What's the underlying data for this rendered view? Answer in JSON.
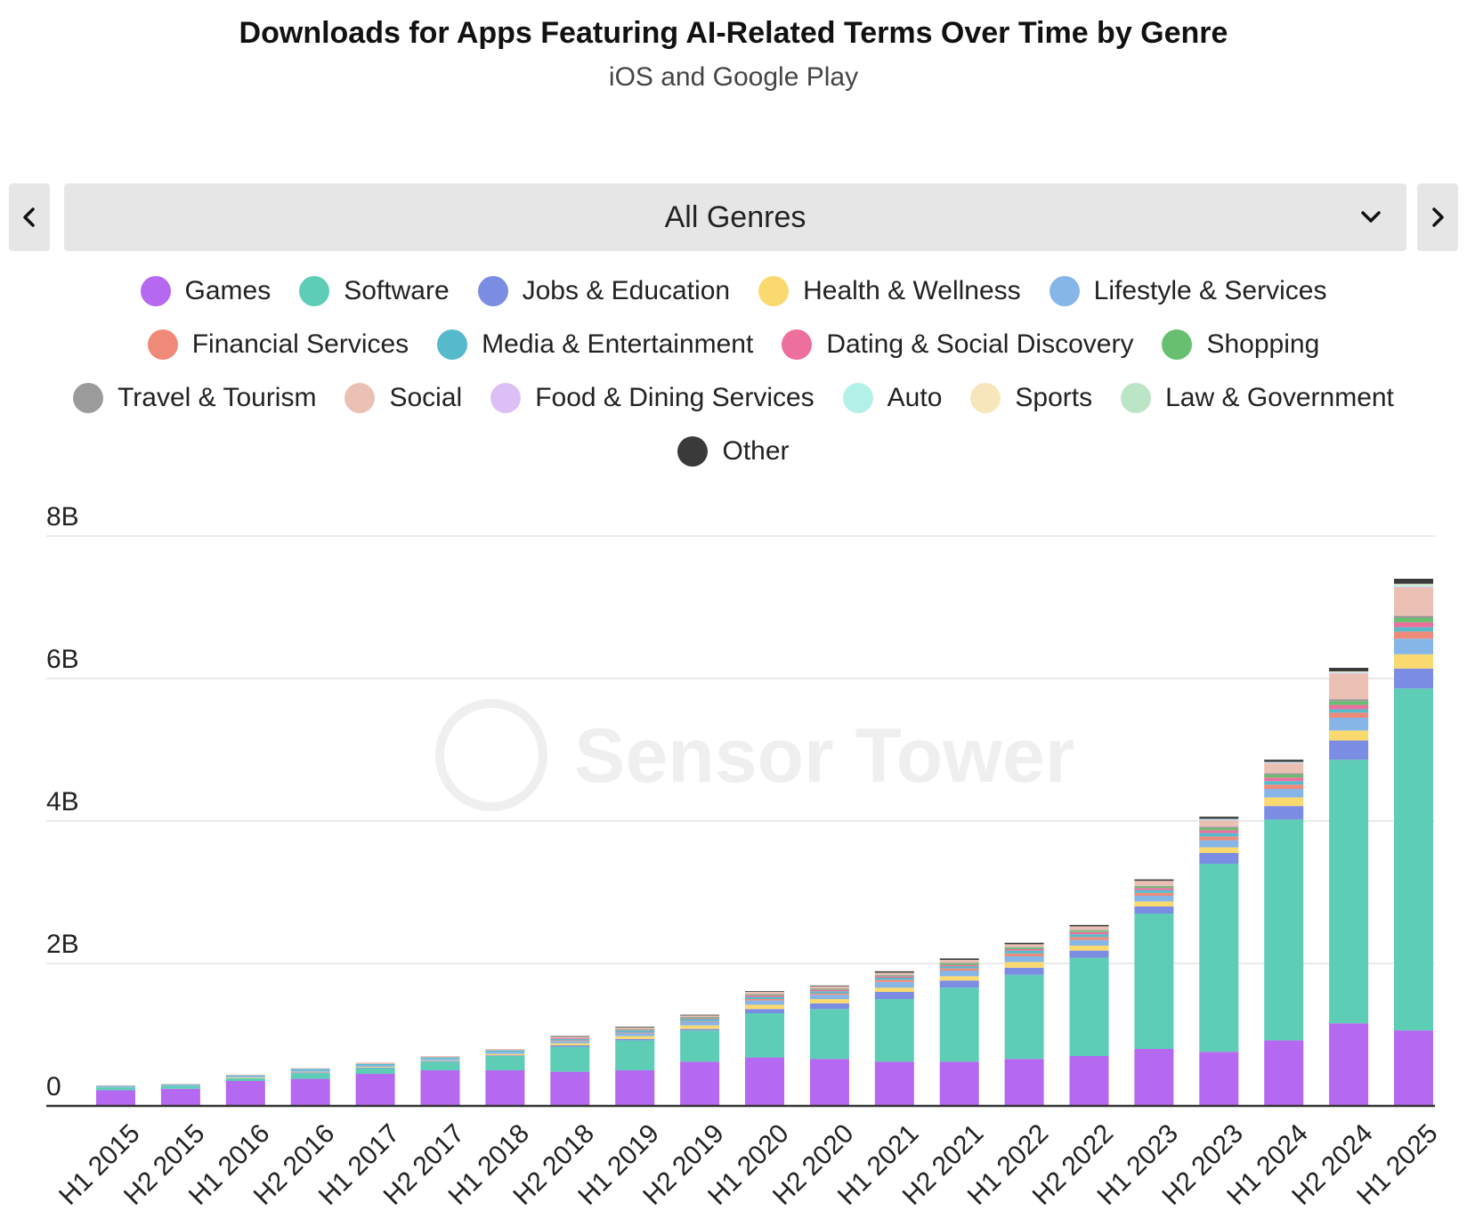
{
  "header": {
    "title": "Downloads for Apps Featuring AI-Related Terms Over Time by Genre",
    "subtitle": "iOS and Google Play"
  },
  "selector": {
    "value": "All Genres",
    "prev_icon": "chevron-left-icon",
    "next_icon": "chevron-right-icon",
    "dropdown_icon": "chevron-down-icon"
  },
  "watermark": "Sensor Tower",
  "legend_rows": [
    [
      0,
      1,
      2,
      3,
      4
    ],
    [
      5,
      6,
      7,
      8
    ],
    [
      9,
      10,
      11,
      12,
      13,
      14
    ],
    [
      15
    ]
  ],
  "chart_data": {
    "type": "bar",
    "stacked": true,
    "unit": "B",
    "ylim": [
      0,
      8
    ],
    "yticks": [
      0,
      2,
      4,
      6,
      8
    ],
    "ytick_labels": [
      "0",
      "2B",
      "4B",
      "6B",
      "8B"
    ],
    "grid": true,
    "legend_position": "top",
    "categories": [
      "H1 2015",
      "H2 2015",
      "H1 2016",
      "H2 2016",
      "H1 2017",
      "H2 2017",
      "H1 2018",
      "H2 2018",
      "H1 2019",
      "H2 2019",
      "H1 2020",
      "H2 2020",
      "H1 2021",
      "H2 2021",
      "H1 2022",
      "H2 2022",
      "H1 2023",
      "H2 2023",
      "H1 2024",
      "H2 2024",
      "H1 2025"
    ],
    "series": [
      {
        "name": "Games",
        "color": "#b469f0",
        "values": [
          0.22,
          0.24,
          0.35,
          0.38,
          0.45,
          0.5,
          0.5,
          0.48,
          0.5,
          0.62,
          0.68,
          0.66,
          0.62,
          0.62,
          0.66,
          0.7,
          0.8,
          0.76,
          0.92,
          1.16,
          1.06
        ]
      },
      {
        "name": "Software",
        "color": "#5ecdb6",
        "values": [
          0.04,
          0.04,
          0.04,
          0.08,
          0.08,
          0.12,
          0.2,
          0.35,
          0.42,
          0.44,
          0.62,
          0.7,
          0.88,
          1.04,
          1.18,
          1.38,
          1.9,
          2.64,
          3.1,
          3.7,
          4.8
        ]
      },
      {
        "name": "Jobs & Education",
        "color": "#7b8de3",
        "values": [
          0.0,
          0.0,
          0.0,
          0.01,
          0.01,
          0.01,
          0.01,
          0.02,
          0.02,
          0.02,
          0.06,
          0.08,
          0.1,
          0.1,
          0.1,
          0.1,
          0.1,
          0.15,
          0.19,
          0.27,
          0.28
        ]
      },
      {
        "name": "Health & Wellness",
        "color": "#fad96e",
        "values": [
          0.0,
          0.0,
          0.01,
          0.01,
          0.01,
          0.01,
          0.02,
          0.03,
          0.04,
          0.05,
          0.06,
          0.06,
          0.06,
          0.06,
          0.08,
          0.07,
          0.07,
          0.08,
          0.12,
          0.14,
          0.2
        ]
      },
      {
        "name": "Lifestyle & Services",
        "color": "#86b5e8",
        "values": [
          0.01,
          0.01,
          0.02,
          0.02,
          0.02,
          0.02,
          0.03,
          0.03,
          0.04,
          0.05,
          0.06,
          0.06,
          0.08,
          0.08,
          0.08,
          0.08,
          0.08,
          0.1,
          0.12,
          0.18,
          0.22
        ]
      },
      {
        "name": "Financial Services",
        "color": "#f08a78",
        "values": [
          0.0,
          0.0,
          0.0,
          0.0,
          0.0,
          0.0,
          0.0,
          0.01,
          0.01,
          0.01,
          0.02,
          0.02,
          0.03,
          0.03,
          0.04,
          0.04,
          0.04,
          0.05,
          0.06,
          0.07,
          0.1
        ]
      },
      {
        "name": "Media & Entertainment",
        "color": "#57b9cc",
        "values": [
          0.01,
          0.01,
          0.01,
          0.02,
          0.02,
          0.02,
          0.02,
          0.02,
          0.03,
          0.03,
          0.03,
          0.03,
          0.03,
          0.03,
          0.04,
          0.04,
          0.04,
          0.05,
          0.05,
          0.05,
          0.06
        ]
      },
      {
        "name": "Dating & Social Discovery",
        "color": "#ec6f9c",
        "values": [
          0.0,
          0.0,
          0.0,
          0.0,
          0.0,
          0.0,
          0.0,
          0.01,
          0.01,
          0.01,
          0.02,
          0.02,
          0.02,
          0.02,
          0.02,
          0.03,
          0.03,
          0.04,
          0.05,
          0.06,
          0.07
        ]
      },
      {
        "name": "Shopping",
        "color": "#66c070",
        "values": [
          0.0,
          0.0,
          0.0,
          0.0,
          0.0,
          0.0,
          0.0,
          0.0,
          0.01,
          0.01,
          0.01,
          0.01,
          0.01,
          0.02,
          0.02,
          0.02,
          0.02,
          0.03,
          0.04,
          0.05,
          0.06
        ]
      },
      {
        "name": "Travel & Tourism",
        "color": "#9b9b9b",
        "values": [
          0.0,
          0.0,
          0.0,
          0.0,
          0.0,
          0.0,
          0.0,
          0.0,
          0.0,
          0.01,
          0.01,
          0.01,
          0.01,
          0.01,
          0.01,
          0.01,
          0.01,
          0.02,
          0.02,
          0.03,
          0.03
        ]
      },
      {
        "name": "Social",
        "color": "#ebc0b4",
        "values": [
          0.01,
          0.01,
          0.01,
          0.01,
          0.02,
          0.02,
          0.02,
          0.02,
          0.02,
          0.02,
          0.03,
          0.03,
          0.03,
          0.04,
          0.04,
          0.05,
          0.07,
          0.09,
          0.14,
          0.36,
          0.4
        ]
      },
      {
        "name": "Food & Dining Services",
        "color": "#dcc0f5",
        "values": [
          0.0,
          0.0,
          0.0,
          0.0,
          0.0,
          0.0,
          0.0,
          0.0,
          0.0,
          0.0,
          0.0,
          0.0,
          0.0,
          0.0,
          0.0,
          0.0,
          0.0,
          0.01,
          0.01,
          0.01,
          0.01
        ]
      },
      {
        "name": "Auto",
        "color": "#b3f0e8",
        "values": [
          0.0,
          0.0,
          0.0,
          0.0,
          0.0,
          0.0,
          0.0,
          0.0,
          0.0,
          0.0,
          0.0,
          0.0,
          0.0,
          0.0,
          0.0,
          0.0,
          0.0,
          0.01,
          0.01,
          0.01,
          0.02
        ]
      },
      {
        "name": "Sports",
        "color": "#f7e6bb",
        "values": [
          0.0,
          0.0,
          0.0,
          0.0,
          0.0,
          0.0,
          0.0,
          0.0,
          0.0,
          0.0,
          0.0,
          0.0,
          0.0,
          0.0,
          0.0,
          0.0,
          0.0,
          0.0,
          0.0,
          0.01,
          0.01
        ]
      },
      {
        "name": "Law & Government",
        "color": "#bce4c6",
        "values": [
          0.0,
          0.0,
          0.0,
          0.0,
          0.0,
          0.0,
          0.0,
          0.0,
          0.0,
          0.0,
          0.0,
          0.0,
          0.0,
          0.0,
          0.0,
          0.0,
          0.0,
          0.0,
          0.0,
          0.0,
          0.01
        ]
      },
      {
        "name": "Other",
        "color": "#3a3a3a",
        "values": [
          0.0,
          0.0,
          0.0,
          0.0,
          0.0,
          0.0,
          0.0,
          0.01,
          0.01,
          0.01,
          0.01,
          0.01,
          0.02,
          0.02,
          0.02,
          0.02,
          0.02,
          0.03,
          0.03,
          0.05,
          0.07
        ]
      }
    ]
  }
}
